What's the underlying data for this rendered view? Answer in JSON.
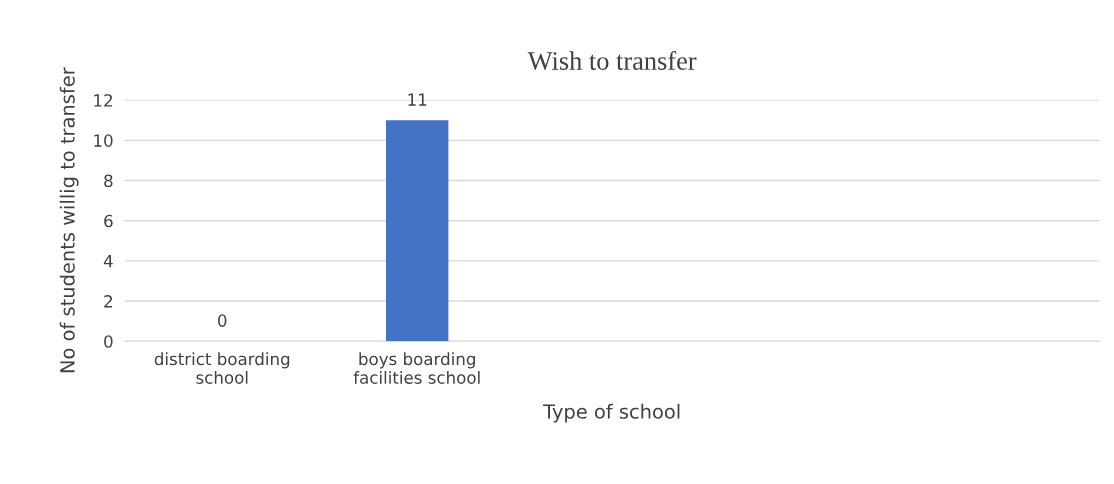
{
  "chart_data": {
    "type": "bar",
    "title": "Wish to transfer",
    "xlabel": "Type of school",
    "ylabel": "No of students willig to transfer",
    "categories": [
      "district boarding\nschool",
      "boys boarding\nfacilities school",
      null,
      null,
      null
    ],
    "values": [
      0,
      11,
      null,
      null,
      null
    ],
    "color": "#4472c4",
    "ylim": [
      0,
      12
    ],
    "yticks": [
      0,
      2,
      4,
      6,
      8,
      10,
      12
    ],
    "grid": "y",
    "data_labels": true
  }
}
